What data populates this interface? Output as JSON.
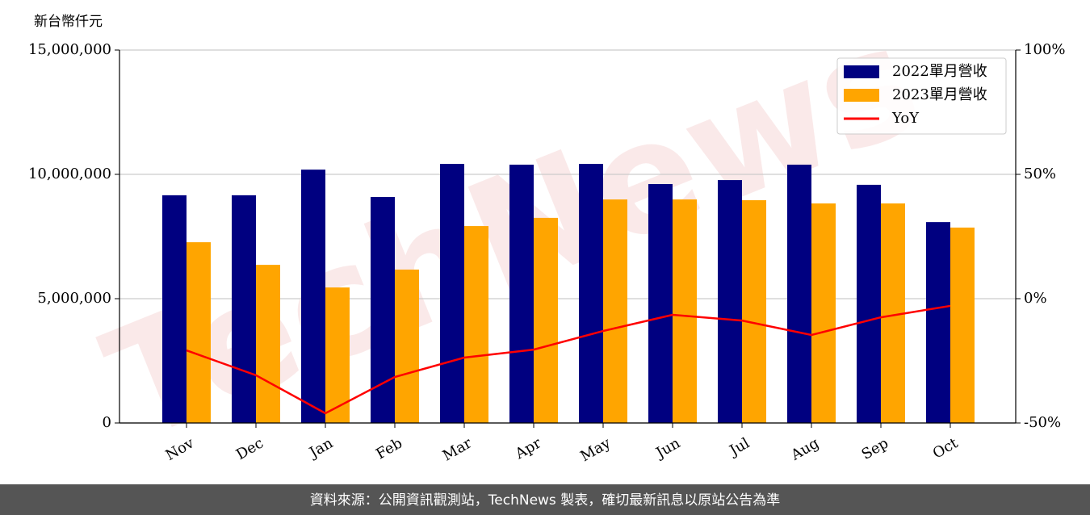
{
  "chart_data": {
    "type": "bar_line",
    "y_label": "新台幣仟元",
    "categories": [
      "Nov",
      "Dec",
      "Jan",
      "Feb",
      "Mar",
      "Apr",
      "May",
      "Jun",
      "Jul",
      "Aug",
      "Sep",
      "Oct"
    ],
    "series": [
      {
        "name": "2022單月營收",
        "color": "#000080",
        "type": "bar",
        "values": [
          9160000,
          9160000,
          10190000,
          9090000,
          10420000,
          10390000,
          10420000,
          9610000,
          9770000,
          10390000,
          9580000,
          8080000
        ]
      },
      {
        "name": "2023單月營收",
        "color": "#ffa500",
        "type": "bar",
        "values": [
          7270000,
          6360000,
          5450000,
          6170000,
          7920000,
          8250000,
          8990000,
          8990000,
          8960000,
          8830000,
          8830000,
          7860000
        ]
      },
      {
        "name": "YoY",
        "color": "#ff0000",
        "type": "line",
        "axis": "y2",
        "values": [
          -20.8,
          -30.8,
          -46.1,
          -31.5,
          -23.7,
          -20.5,
          -13,
          -6.5,
          -8.8,
          -14.6,
          -7.5,
          -2.9
        ]
      }
    ],
    "ylim": [
      0,
      15000000
    ],
    "yticks": [
      0,
      {
        "value": 5000000,
        "label": "5,000,000"
      },
      {
        "value": 10000000,
        "label": "10,000,000"
      },
      {
        "value": 15000000,
        "label": "15,000,000"
      }
    ],
    "y2lim": [
      -50,
      100
    ],
    "y2ticks": [
      {
        "value": -50,
        "label": "-50%"
      },
      {
        "value": 0,
        "label": "0%"
      },
      {
        "value": 50,
        "label": "50%"
      },
      {
        "value": 100,
        "label": "100%"
      }
    ],
    "grid": true,
    "legend": "upper right",
    "watermark": "TechNews",
    "footer": "資料來源：公開資訊觀測站，TechNews 製表，確切最新訊息以原站公告為準"
  }
}
